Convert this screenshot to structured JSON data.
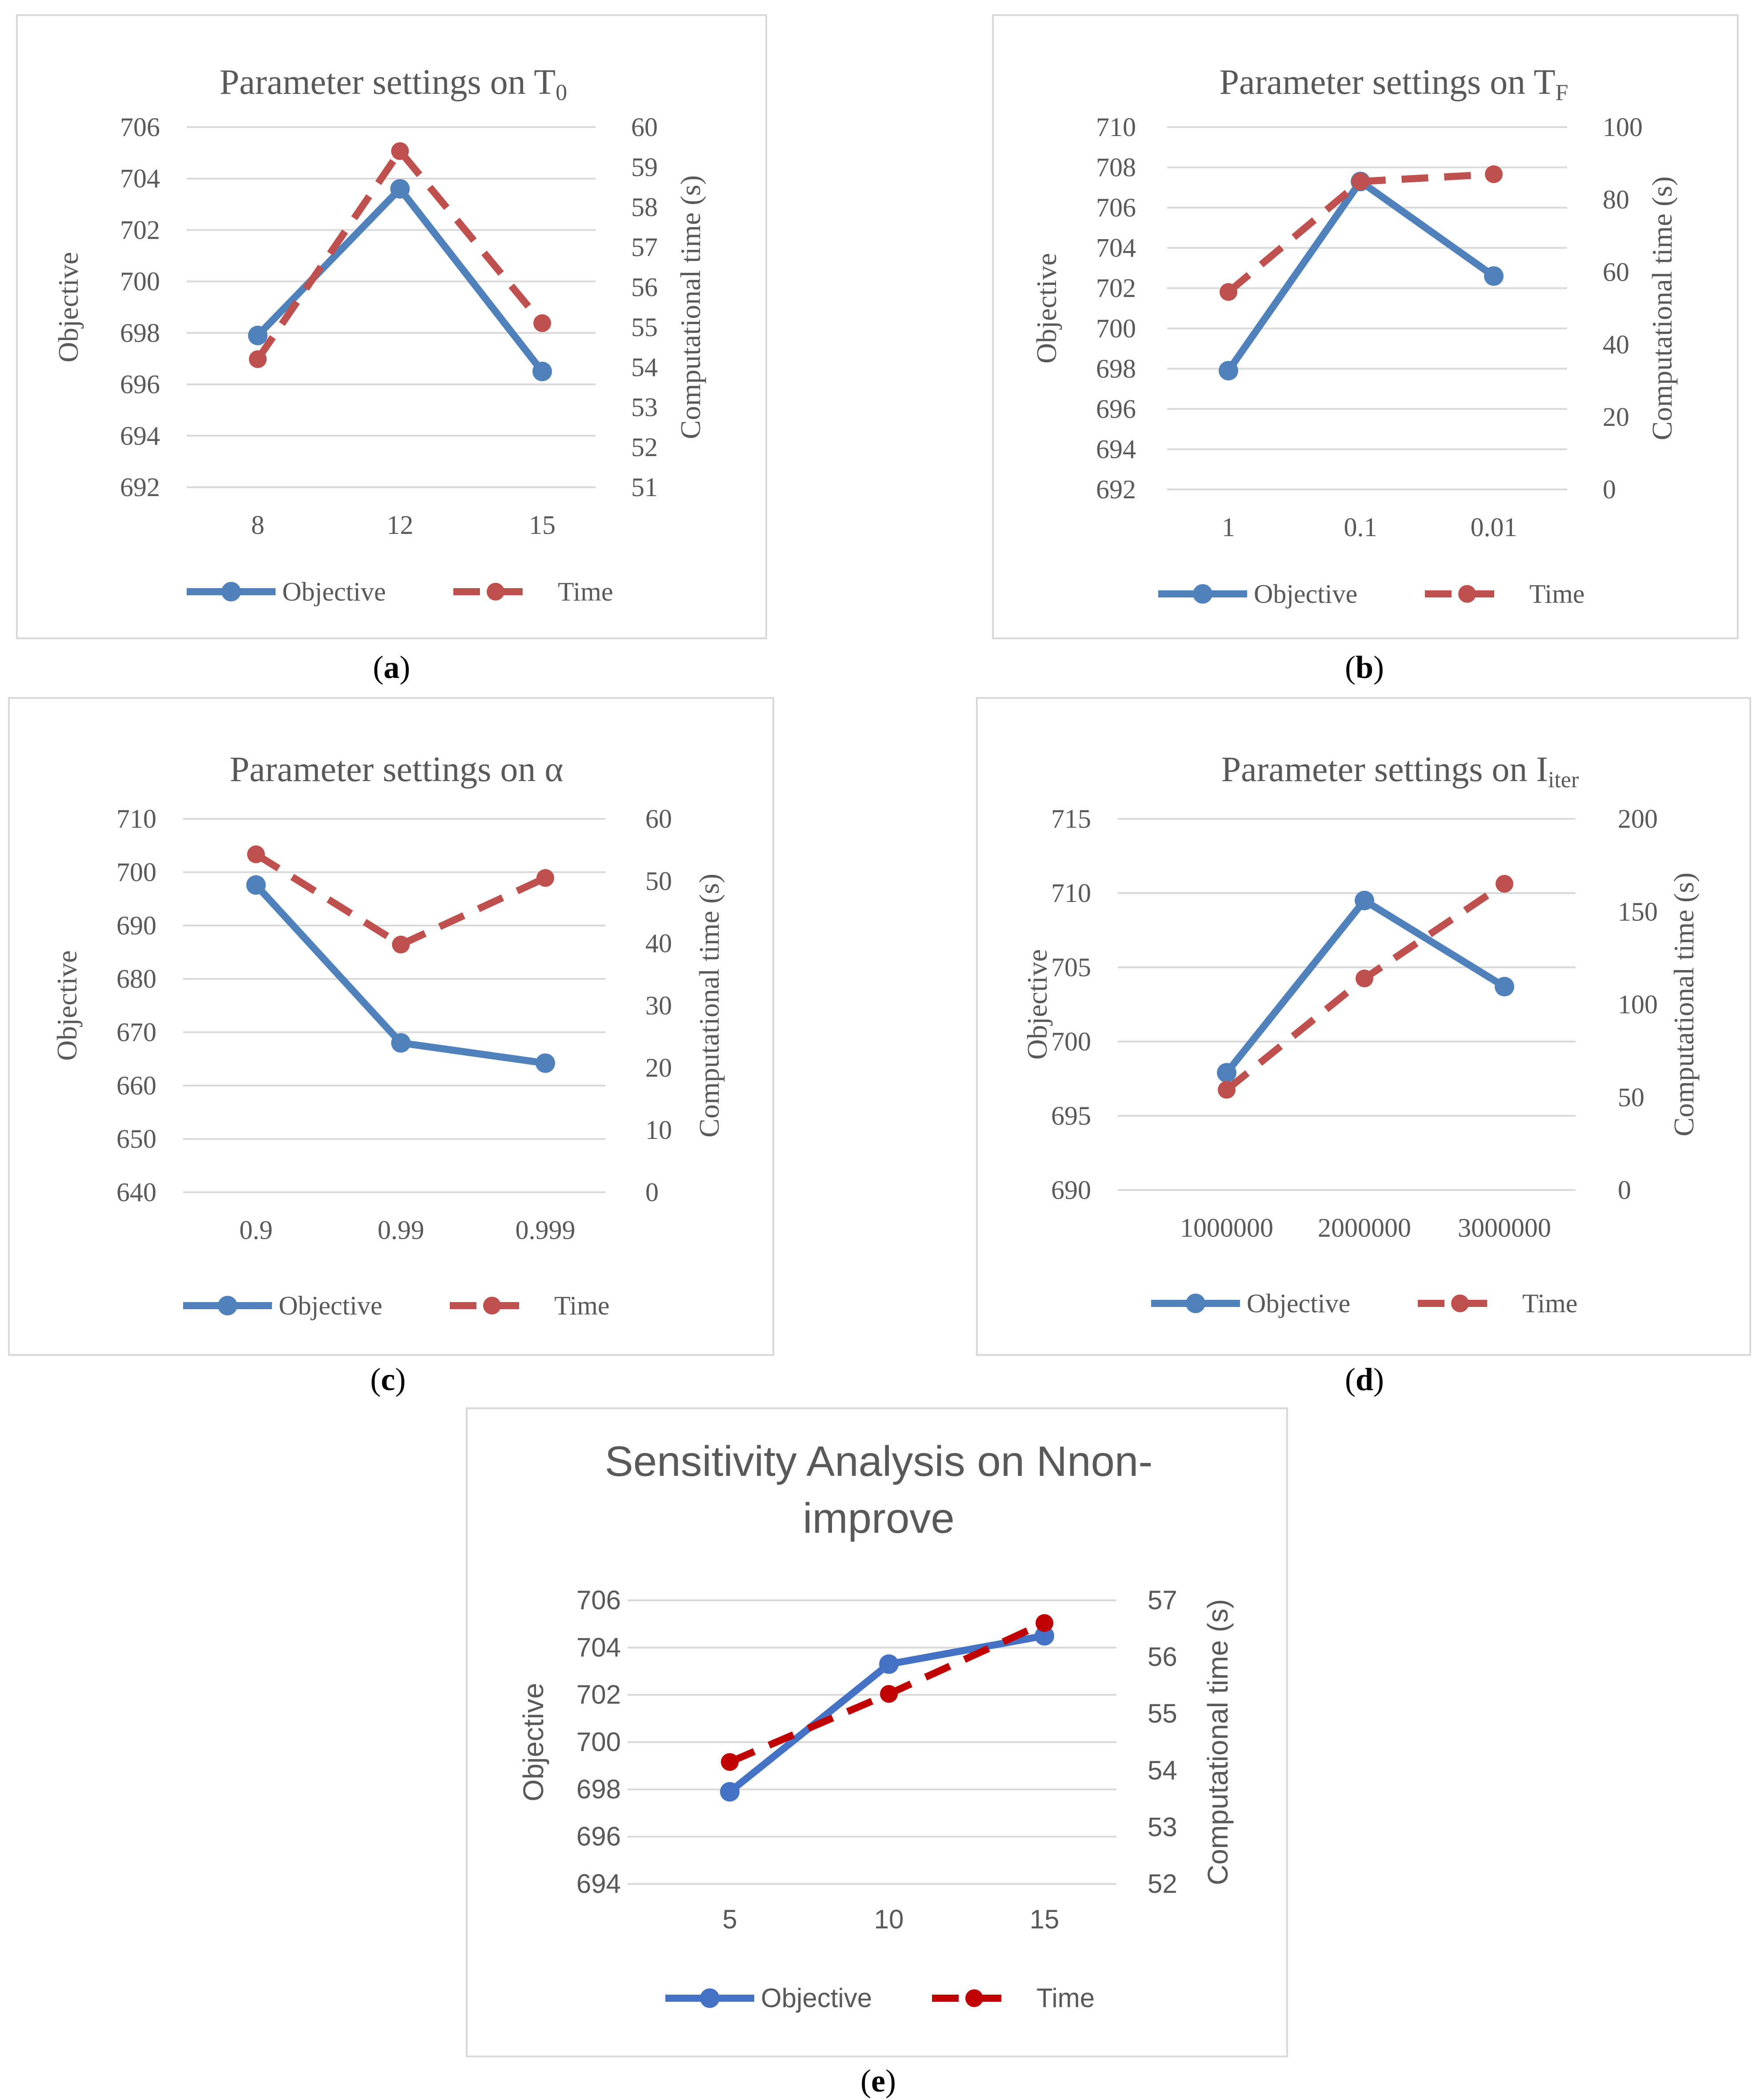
{
  "colors": {
    "objective": "#4f81bd",
    "time": "#c0504d",
    "time_e": "#c00000",
    "objective_e": "#4472c4",
    "grid": "#d9d9d9",
    "axis_text": "#595959"
  },
  "chart_data": [
    {
      "id": "a",
      "type": "line",
      "caption_open": "(",
      "caption_label": "a",
      "caption_close": ")",
      "title_main": "Parameter settings on T",
      "title_sub": "0",
      "categories": [
        "8",
        "12",
        "15"
      ],
      "ylabel": "Objective",
      "y2label": "Computational time (s)",
      "ylim": [
        692,
        706
      ],
      "yticks": [
        692,
        694,
        696,
        698,
        700,
        702,
        704,
        706
      ],
      "y2lim": [
        51,
        60
      ],
      "y2ticks": [
        51,
        52,
        53,
        54,
        55,
        56,
        57,
        58,
        59,
        60
      ],
      "series": [
        {
          "name": "Objective",
          "axis": "left",
          "values": [
            697.9,
            703.6,
            696.5
          ]
        },
        {
          "name": "Time",
          "axis": "right",
          "values": [
            54.2,
            59.4,
            55.1
          ]
        }
      ],
      "legend": "bottom"
    },
    {
      "id": "b",
      "type": "line",
      "caption_open": "(",
      "caption_label": "b",
      "caption_close": ")",
      "title_main": "Parameter settings on T",
      "title_sub": "F",
      "categories": [
        "1",
        "0.1",
        "0.01"
      ],
      "ylabel": "Objective",
      "y2label": "Computational time (s)",
      "ylim": [
        692,
        710
      ],
      "yticks": [
        692,
        694,
        696,
        698,
        700,
        702,
        704,
        706,
        708,
        710
      ],
      "y2lim": [
        0,
        100
      ],
      "y2ticks": [
        0,
        20,
        40,
        60,
        80,
        100
      ],
      "series": [
        {
          "name": "Objective",
          "axis": "left",
          "values": [
            697.9,
            707.3,
            702.6
          ]
        },
        {
          "name": "Time",
          "axis": "right",
          "values": [
            54.5,
            85,
            87
          ]
        }
      ],
      "legend": "bottom"
    },
    {
      "id": "c",
      "type": "line",
      "caption_open": "(",
      "caption_label": "c",
      "caption_close": ")",
      "title_main": "Parameter settings on α",
      "title_sub": "",
      "categories": [
        "0.9",
        "0.99",
        "0.999"
      ],
      "ylabel": "Objective",
      "y2label": "Computational time (s)",
      "ylim": [
        640,
        710
      ],
      "yticks": [
        640,
        650,
        660,
        670,
        680,
        690,
        700,
        710
      ],
      "y2lim": [
        0,
        60
      ],
      "y2ticks": [
        0,
        10,
        20,
        30,
        40,
        50,
        60
      ],
      "series": [
        {
          "name": "Objective",
          "axis": "left",
          "values": [
            697.6,
            668,
            664.2
          ]
        },
        {
          "name": "Time",
          "axis": "right",
          "values": [
            54.3,
            39.8,
            50.5
          ]
        }
      ],
      "legend": "bottom"
    },
    {
      "id": "d",
      "type": "line",
      "caption_open": "(",
      "caption_label": "d",
      "caption_close": ")",
      "title_main": "Parameter settings on I",
      "title_sub": "iter",
      "categories": [
        "1000000",
        "2000000",
        "3000000"
      ],
      "ylabel": "Objective",
      "y2label": "Computational time (s)",
      "ylim": [
        690,
        715
      ],
      "yticks": [
        690,
        695,
        700,
        705,
        710,
        715
      ],
      "y2lim": [
        0,
        200
      ],
      "y2ticks": [
        0,
        50,
        100,
        150,
        200
      ],
      "series": [
        {
          "name": "Objective",
          "axis": "left",
          "values": [
            697.9,
            709.5,
            703.7
          ]
        },
        {
          "name": "Time",
          "axis": "right",
          "values": [
            54,
            114,
            165
          ]
        }
      ],
      "legend": "bottom"
    },
    {
      "id": "e",
      "type": "line",
      "caption_open": "(",
      "caption_label": "e",
      "caption_close": ")",
      "title_line1": "Sensitivity Analysis on Nnon-",
      "title_line2": "improve",
      "categories": [
        "5",
        "10",
        "15"
      ],
      "ylabel": "Objective",
      "y2label": "Computational time (s)",
      "ylim": [
        694,
        706
      ],
      "yticks": [
        694,
        696,
        698,
        700,
        702,
        704,
        706
      ],
      "y2lim": [
        52,
        57
      ],
      "y2ticks": [
        52,
        53,
        54,
        55,
        56,
        57
      ],
      "series": [
        {
          "name": "Objective",
          "axis": "left",
          "values": [
            697.9,
            703.3,
            704.5
          ]
        },
        {
          "name": "Time",
          "axis": "right",
          "values": [
            54.15,
            55.35,
            56.6
          ]
        }
      ],
      "legend": "bottom"
    }
  ]
}
